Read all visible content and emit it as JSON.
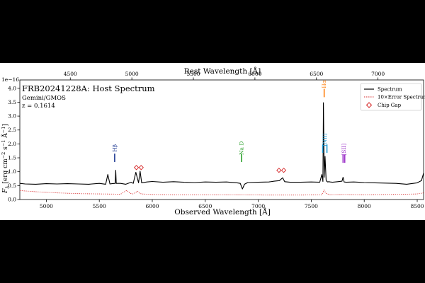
{
  "chart_data": {
    "type": "line",
    "title": "FRB20241228A: Host Spectrum",
    "subtitle_lines": [
      "Gemini/GMOS",
      "z = 0.1614"
    ],
    "xlabel": "Observed Wavelength [Å]",
    "ylabel": "F_λ [erg cm⁻² s⁻¹ Å⁻¹]",
    "ylabel_parts": {
      "main": "F",
      "sub": "λ",
      "rest": " [erg cm",
      "e1": "−2",
      "s": " s",
      "e2": "−1",
      "a": " Å",
      "e3": "−1",
      "end": "]"
    },
    "top_xlabel": "Rest Wavelength [Å]",
    "y_scale_label": "1e−16",
    "redshift": 0.1614,
    "xlim": [
      4750,
      8560
    ],
    "ylim": [
      0,
      4.3
    ],
    "x_ticks": [
      5000,
      5500,
      6000,
      6500,
      7000,
      7500,
      8000,
      8500
    ],
    "y_ticks": [
      "0.0",
      "0.5",
      "1.0",
      "1.5",
      "2.0",
      "2.5",
      "3.0",
      "3.5",
      "4.0"
    ],
    "top_ticks": [
      4500,
      5000,
      5500,
      6000,
      6500,
      7000
    ],
    "legend": {
      "placement": "top-right",
      "entries": [
        "Spectrum",
        "10×Error Spectrum",
        "Chip Gap"
      ]
    },
    "colors": {
      "spectrum": "#000000",
      "error": "#d62728",
      "chip_gap": "#d62728",
      "hbeta": "#1f3a93",
      "nad": "#2ca02c",
      "halpha": "#ff7f0e",
      "nii": "#1f9bd4",
      "sii": "#9b30c8"
    },
    "series": [
      {
        "name": "Spectrum",
        "x": [
          4750,
          4800,
          4900,
          5000,
          5100,
          5200,
          5300,
          5400,
          5500,
          5560,
          5580,
          5600,
          5620,
          5650,
          5655,
          5660,
          5700,
          5750,
          5800,
          5820,
          5845,
          5870,
          5885,
          5900,
          5950,
          6000,
          6100,
          6200,
          6300,
          6400,
          6500,
          6600,
          6700,
          6800,
          6830,
          6850,
          6870,
          6900,
          7000,
          7100,
          7150,
          7200,
          7230,
          7250,
          7300,
          7400,
          7500,
          7580,
          7600,
          7610,
          7615,
          7622,
          7630,
          7640,
          7645,
          7655,
          7665,
          7680,
          7700,
          7750,
          7790,
          7800,
          7810,
          7830,
          7900,
          8000,
          8100,
          8200,
          8300,
          8400,
          8500,
          8540,
          8560
        ],
        "y": [
          0.58,
          0.56,
          0.55,
          0.57,
          0.56,
          0.57,
          0.56,
          0.55,
          0.58,
          0.55,
          0.9,
          0.56,
          0.57,
          0.58,
          1.05,
          0.58,
          0.58,
          0.55,
          0.62,
          0.58,
          0.98,
          0.6,
          1.02,
          0.6,
          0.63,
          0.65,
          0.62,
          0.64,
          0.62,
          0.61,
          0.63,
          0.62,
          0.63,
          0.6,
          0.58,
          0.38,
          0.55,
          0.61,
          0.62,
          0.63,
          0.66,
          0.68,
          0.78,
          0.64,
          0.62,
          0.62,
          0.63,
          0.62,
          0.9,
          0.65,
          3.48,
          0.8,
          1.55,
          0.7,
          0.66,
          0.63,
          0.64,
          0.63,
          0.62,
          0.64,
          0.66,
          0.8,
          0.63,
          0.62,
          0.63,
          0.61,
          0.6,
          0.59,
          0.58,
          0.55,
          0.6,
          0.68,
          0.95
        ]
      },
      {
        "name": "10×Error Spectrum",
        "x": [
          4750,
          4900,
          5100,
          5300,
          5500,
          5700,
          5760,
          5790,
          5820,
          5860,
          5880,
          5900,
          6000,
          6200,
          6500,
          6800,
          7100,
          7400,
          7600,
          7620,
          7640,
          7680,
          7800,
          8000,
          8200,
          8400,
          8500,
          8560
        ],
        "y": [
          0.32,
          0.28,
          0.24,
          0.21,
          0.2,
          0.19,
          0.33,
          0.22,
          0.2,
          0.3,
          0.22,
          0.2,
          0.18,
          0.17,
          0.17,
          0.17,
          0.16,
          0.16,
          0.17,
          0.34,
          0.22,
          0.17,
          0.18,
          0.17,
          0.18,
          0.19,
          0.2,
          0.24
        ]
      }
    ],
    "chip_gaps": [
      {
        "x": 5850,
        "y": 1.15
      },
      {
        "x": 5895,
        "y": 1.15
      },
      {
        "x": 7195,
        "y": 1.05
      },
      {
        "x": 7240,
        "y": 1.05
      }
    ],
    "lines": [
      {
        "label": "Hβ",
        "x": [
          5645
        ],
        "color": "#1f3a93",
        "y0": 1.35,
        "y1": 1.65,
        "ly": 1.85
      },
      {
        "label": "Na D",
        "x": [
          6842
        ],
        "color": "#2ca02c",
        "y0": 1.35,
        "y1": 1.65,
        "ly": 1.85
      },
      {
        "label": "Hα",
        "x": [
          7622
        ],
        "color": "#ff7f0e",
        "y0": 3.68,
        "y1": 3.98,
        "ly": 4.15
      },
      {
        "label": "[NII]",
        "x": [
          7608,
          7648
        ],
        "color": "#1f9bd4",
        "y0": 1.68,
        "y1": 1.98,
        "ly": 2.15
      },
      {
        "label": "[SII]",
        "x": [
          7800,
          7816
        ],
        "color": "#9b30c8",
        "y0": 1.32,
        "y1": 1.62,
        "ly": 1.8
      }
    ]
  }
}
